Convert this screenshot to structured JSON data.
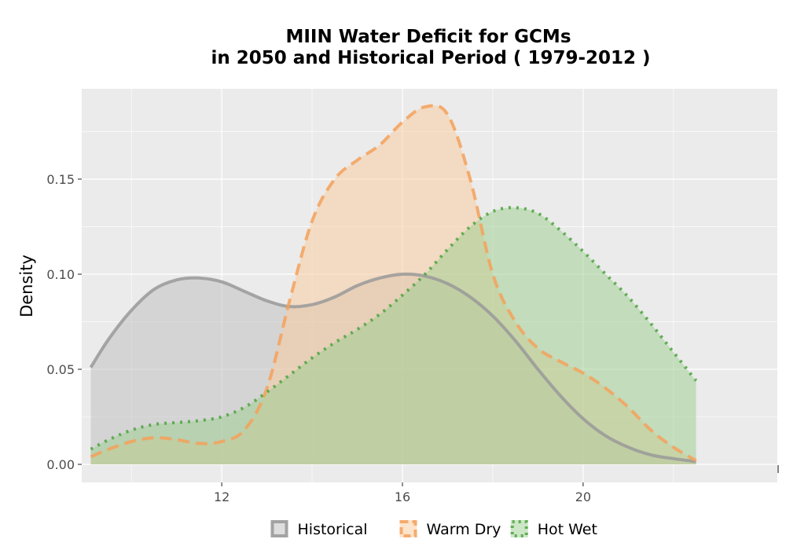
{
  "chart_data": {
    "type": "area",
    "title_line1": "MIIN  Water Deficit for GCMs",
    "title_line2": "in 2050 and Historical Period ( 1979-2012 )",
    "xlabel": "",
    "ylabel": "Density",
    "xlim": [
      8.9,
      24.3
    ],
    "ylim": [
      -0.0095,
      0.1975
    ],
    "x_ticks": [
      12,
      16,
      20
    ],
    "y_ticks": [
      0.0,
      0.05,
      0.1,
      0.15
    ],
    "y_tick_labels": [
      "0.00",
      "0.05",
      "0.10",
      "0.15"
    ],
    "grid": true,
    "legend_position": "bottom",
    "series": [
      {
        "name": "Historical",
        "color": "#999999",
        "fill": "#bdbdbd",
        "line_style": "solid",
        "x": [
          9.1,
          9.5,
          10.0,
          10.5,
          11.0,
          11.5,
          12.0,
          12.5,
          13.0,
          13.5,
          14.0,
          14.5,
          15.0,
          15.5,
          16.0,
          16.5,
          17.0,
          17.5,
          18.0,
          18.5,
          19.0,
          19.5,
          20.0,
          20.5,
          21.0,
          21.5,
          22.0,
          22.5
        ],
        "y": [
          0.051,
          0.066,
          0.081,
          0.092,
          0.097,
          0.098,
          0.096,
          0.091,
          0.086,
          0.083,
          0.084,
          0.088,
          0.094,
          0.098,
          0.1,
          0.099,
          0.095,
          0.088,
          0.078,
          0.065,
          0.05,
          0.036,
          0.024,
          0.015,
          0.009,
          0.005,
          0.003,
          0.0015
        ]
      },
      {
        "name": "Warm Dry",
        "color": "#f5a15a",
        "fill": "#f9c99b",
        "line_style": "dashed",
        "x": [
          9.1,
          9.5,
          10.0,
          10.5,
          11.0,
          11.5,
          12.0,
          12.5,
          13.0,
          13.5,
          14.0,
          14.5,
          15.0,
          15.5,
          16.0,
          16.5,
          17.0,
          17.5,
          18.0,
          18.5,
          19.0,
          19.5,
          20.0,
          20.5,
          21.0,
          21.5,
          22.0,
          22.5
        ],
        "y": [
          0.004,
          0.008,
          0.012,
          0.014,
          0.013,
          0.011,
          0.012,
          0.018,
          0.04,
          0.086,
          0.128,
          0.15,
          0.16,
          0.168,
          0.18,
          0.188,
          0.184,
          0.15,
          0.1,
          0.075,
          0.061,
          0.054,
          0.048,
          0.04,
          0.03,
          0.018,
          0.009,
          0.002
        ]
      },
      {
        "name": "Hot Wet",
        "color": "#4da33f",
        "fill": "#9acd8e",
        "line_style": "dotted",
        "x": [
          9.1,
          9.5,
          10.0,
          10.5,
          11.0,
          11.5,
          12.0,
          12.5,
          13.0,
          13.5,
          14.0,
          14.5,
          15.0,
          15.5,
          16.0,
          16.5,
          17.0,
          17.5,
          18.0,
          18.5,
          19.0,
          19.5,
          20.0,
          20.5,
          21.0,
          21.5,
          22.0,
          22.5
        ],
        "y": [
          0.008,
          0.013,
          0.018,
          0.021,
          0.022,
          0.023,
          0.025,
          0.03,
          0.038,
          0.047,
          0.056,
          0.064,
          0.071,
          0.079,
          0.089,
          0.1,
          0.113,
          0.125,
          0.133,
          0.135,
          0.132,
          0.123,
          0.112,
          0.1,
          0.088,
          0.074,
          0.059,
          0.044
        ]
      }
    ]
  }
}
